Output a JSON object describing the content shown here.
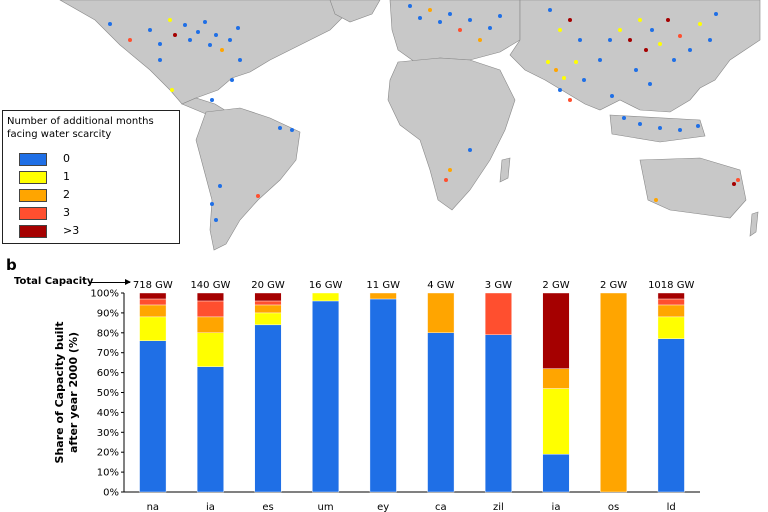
{
  "legend": {
    "title": "Number of additional months facing water scarcity",
    "items": [
      {
        "label": "0",
        "color": "#1f6fe6"
      },
      {
        "label": "1",
        "color": "#ffff00"
      },
      {
        "label": "2",
        "color": "#ffa500"
      },
      {
        "label": "3",
        "color": "#ff4f2f"
      },
      {
        "label": ">3",
        "color": "#a50000"
      }
    ]
  },
  "panel_label": "b",
  "total_capacity_label": "Total Capacity",
  "chart_data": {
    "type": "bar",
    "stacked": true,
    "categories": [
      "na",
      "ia",
      "es",
      "um",
      "ey",
      "ca",
      "zil",
      "ia",
      "os",
      "ld"
    ],
    "capacity_labels": [
      "718 GW",
      "140 GW",
      "20 GW",
      "16 GW",
      "11 GW",
      "4 GW",
      "3 GW",
      "2 GW",
      "2 GW",
      "1018 GW"
    ],
    "series": [
      {
        "name": "0",
        "color": "#1f6fe6",
        "values": [
          76,
          63,
          84,
          96,
          97,
          80,
          79,
          19,
          0,
          77
        ]
      },
      {
        "name": "1",
        "color": "#ffff00",
        "values": [
          12,
          17,
          6,
          4,
          0,
          0,
          0,
          33,
          0,
          11
        ]
      },
      {
        "name": "2",
        "color": "#ffa500",
        "values": [
          6,
          8,
          4,
          0,
          3,
          20,
          0,
          10,
          100,
          6
        ]
      },
      {
        "name": "3",
        "color": "#ff4f2f",
        "values": [
          3,
          8,
          2,
          0,
          0,
          0,
          21,
          0,
          0,
          3
        ]
      },
      {
        "name": ">3",
        "color": "#a50000",
        "values": [
          3,
          4,
          4,
          0,
          0,
          0,
          0,
          38,
          0,
          3
        ]
      }
    ],
    "ylabel": "Share of Capacity built after year 2000 (%)",
    "ylim": [
      0,
      100
    ],
    "yticks": [
      "0%",
      "10%",
      "20%",
      "30%",
      "40%",
      "50%",
      "60%",
      "70%",
      "80%",
      "90%",
      "100%"
    ]
  }
}
